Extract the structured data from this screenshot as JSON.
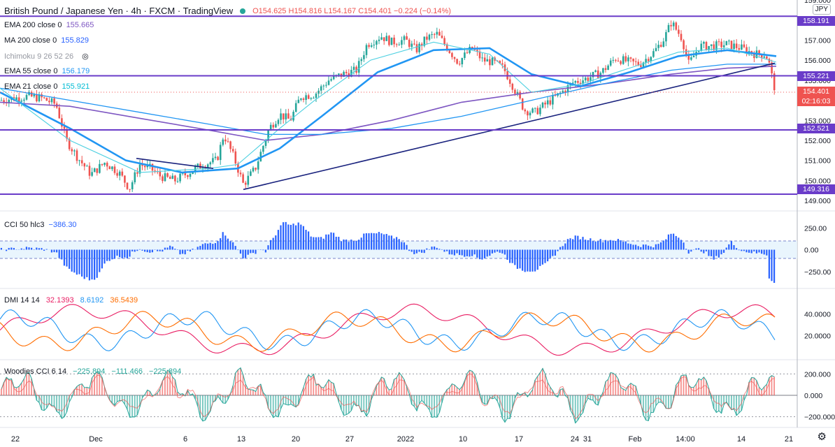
{
  "header": {
    "symbol": "British Pound / Japanese Yen · 4h · FXCM · TradingView",
    "open": "O154.625",
    "high": "H154.816",
    "low": "L154.167",
    "close": "C154.401",
    "change": "−0.224 (−0.14%)"
  },
  "currency_button": "JPY",
  "indicators": [
    {
      "label": "EMA 200 close 0",
      "value": "155.665",
      "color": "#7e57c2"
    },
    {
      "label": "MA 200 close 0",
      "value": "155.829",
      "color": "#2962ff"
    },
    {
      "label": "Ichimoku 9 26 52 26",
      "value": "",
      "color": "#9598a1"
    },
    {
      "label": "EMA 55 close 0",
      "value": "156.179",
      "color": "#2196f3"
    },
    {
      "label": "EMA 21 close 0",
      "value": "155.921",
      "color": "#00bcd4"
    }
  ],
  "cci": {
    "label": "CCI 50 hlc3",
    "value": "−386.30"
  },
  "dmi": {
    "label": "DMI 14 14",
    "v1": "32.1393",
    "v2": "8.6192",
    "v3": "36.5439"
  },
  "woodies": {
    "label": "Woodies CCI 6 14",
    "v1": "−225.894",
    "v2": "−111.466",
    "v3": "−225.894"
  },
  "price_tags": {
    "last": "154.401",
    "countdown": "02:16:03",
    "levels": [
      "158.191",
      "155.221",
      "152.521",
      "149.316"
    ]
  },
  "colors": {
    "up": "#26a69a",
    "down": "#ef5350",
    "level": "#6a3cc9",
    "trend": "#1a237e"
  },
  "chart_data": [
    {
      "type": "candlestick",
      "title": "British Pound / Japanese Yen · 4h · FXCM",
      "y_ticks": [
        "149.000",
        "150.000",
        "151.000",
        "152.000",
        "153.000",
        "154.000",
        "155.000",
        "156.000",
        "157.000",
        "158.000",
        "159.000"
      ],
      "x_ticks": [
        "22",
        "Dec",
        "6",
        "13",
        "20",
        "27",
        "2022",
        "10",
        "17",
        "24",
        "31",
        "Feb",
        "14:00",
        "14",
        "21",
        "14:00"
      ],
      "ylim": [
        148.9,
        159.0
      ],
      "horizontal_levels": [
        158.191,
        155.221,
        152.521,
        149.316
      ],
      "close_path": [
        [
          0,
          154.0
        ],
        [
          20,
          154.1
        ],
        [
          40,
          154.2
        ],
        [
          60,
          154.1
        ],
        [
          80,
          153.8
        ],
        [
          95,
          152.0
        ],
        [
          110,
          151.2
        ],
        [
          130,
          150.3
        ],
        [
          150,
          150.9
        ],
        [
          170,
          150.4
        ],
        [
          185,
          149.6
        ],
        [
          200,
          150.8
        ],
        [
          215,
          150.6
        ],
        [
          230,
          150.2
        ],
        [
          250,
          150.0
        ],
        [
          270,
          150.4
        ],
        [
          290,
          150.8
        ],
        [
          310,
          151.0
        ],
        [
          320,
          152.3
        ],
        [
          335,
          151.1
        ],
        [
          348,
          149.8
        ],
        [
          365,
          150.6
        ],
        [
          385,
          152.6
        ],
        [
          400,
          153.3
        ],
        [
          415,
          153.0
        ],
        [
          430,
          154.2
        ],
        [
          450,
          154.3
        ],
        [
          470,
          155.0
        ],
        [
          490,
          155.3
        ],
        [
          510,
          155.5
        ],
        [
          525,
          156.8
        ],
        [
          545,
          157.2
        ],
        [
          560,
          156.9
        ],
        [
          580,
          157.0
        ],
        [
          595,
          156.5
        ],
        [
          610,
          157.1
        ],
        [
          625,
          157.3
        ],
        [
          640,
          156.6
        ],
        [
          655,
          155.9
        ],
        [
          675,
          156.6
        ],
        [
          690,
          156.0
        ],
        [
          705,
          155.9
        ],
        [
          720,
          155.6
        ],
        [
          735,
          154.6
        ],
        [
          750,
          153.5
        ],
        [
          765,
          153.4
        ],
        [
          780,
          153.8
        ],
        [
          800,
          154.3
        ],
        [
          820,
          154.9
        ],
        [
          840,
          155.1
        ],
        [
          860,
          155.4
        ],
        [
          880,
          156.1
        ],
        [
          900,
          155.9
        ],
        [
          915,
          155.8
        ],
        [
          935,
          156.4
        ],
        [
          950,
          157.1
        ],
        [
          960,
          157.9
        ],
        [
          975,
          157.1
        ],
        [
          985,
          155.8
        ],
        [
          1000,
          156.7
        ],
        [
          1020,
          156.7
        ],
        [
          1040,
          156.8
        ],
        [
          1060,
          156.6
        ],
        [
          1080,
          156.3
        ],
        [
          1095,
          156.3
        ],
        [
          1100,
          155.8
        ],
        [
          1106,
          154.8
        ],
        [
          1110,
          154.4
        ]
      ],
      "ema21": [
        [
          0,
          154.6
        ],
        [
          100,
          152.0
        ],
        [
          200,
          150.4
        ],
        [
          300,
          150.6
        ],
        [
          340,
          150.8
        ],
        [
          400,
          152.6
        ],
        [
          450,
          154.0
        ],
        [
          530,
          156.0
        ],
        [
          620,
          156.9
        ],
        [
          700,
          156.3
        ],
        [
          760,
          154.4
        ],
        [
          830,
          154.8
        ],
        [
          900,
          155.6
        ],
        [
          970,
          156.4
        ],
        [
          1040,
          156.6
        ],
        [
          1110,
          155.9
        ]
      ],
      "ema55": [
        [
          0,
          154.4
        ],
        [
          100,
          152.6
        ],
        [
          180,
          151.0
        ],
        [
          260,
          150.4
        ],
        [
          340,
          150.6
        ],
        [
          400,
          151.6
        ],
        [
          460,
          153.2
        ],
        [
          540,
          155.4
        ],
        [
          620,
          156.5
        ],
        [
          700,
          156.6
        ],
        [
          760,
          155.3
        ],
        [
          830,
          154.7
        ],
        [
          900,
          155.4
        ],
        [
          970,
          156.2
        ],
        [
          1040,
          156.5
        ],
        [
          1110,
          156.2
        ]
      ],
      "ma200": [
        [
          0,
          154.6
        ],
        [
          100,
          154.0
        ],
        [
          200,
          153.4
        ],
        [
          300,
          152.8
        ],
        [
          380,
          152.3
        ],
        [
          460,
          152.3
        ],
        [
          560,
          152.6
        ],
        [
          660,
          153.2
        ],
        [
          760,
          154.0
        ],
        [
          860,
          154.8
        ],
        [
          960,
          155.5
        ],
        [
          1040,
          155.8
        ],
        [
          1110,
          155.8
        ]
      ],
      "ema200": [
        [
          0,
          153.9
        ],
        [
          100,
          153.7
        ],
        [
          200,
          153.1
        ],
        [
          300,
          152.5
        ],
        [
          380,
          152.0
        ],
        [
          460,
          152.3
        ],
        [
          560,
          153.0
        ],
        [
          660,
          153.9
        ],
        [
          760,
          154.4
        ],
        [
          860,
          154.8
        ],
        [
          960,
          155.3
        ],
        [
          1040,
          155.6
        ],
        [
          1110,
          155.7
        ]
      ],
      "trendlines": [
        {
          "from": [
            348,
            149.55
          ],
          "to": [
            1108,
            155.85
          ]
        },
        {
          "from": [
            195,
            151.1
          ],
          "to": [
            305,
            150.6
          ]
        }
      ]
    },
    {
      "type": "bar",
      "title": "CCI 50 hlc3",
      "y_ticks": [
        "250.00",
        "0.00",
        "−250.00"
      ],
      "ylim": [
        -420,
        420
      ],
      "band": [
        -100,
        100
      ]
    },
    {
      "type": "line",
      "title": "DMI 14 14",
      "y_ticks": [
        "40.0000",
        "20.0000"
      ],
      "ylim": [
        0,
        60
      ]
    },
    {
      "type": "line",
      "title": "Woodies CCI 6 14",
      "y_ticks": [
        "200.000",
        "0.000",
        "−200.000"
      ],
      "ylim": [
        -300,
        300
      ]
    }
  ]
}
